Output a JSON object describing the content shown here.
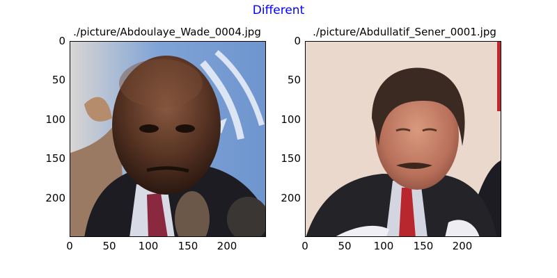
{
  "figure": {
    "title": "Different",
    "title_color": "#0000ff"
  },
  "panels": [
    {
      "title": "./picture/Abdoulaye_Wade_0004.jpg",
      "image_subject": "photo of man in dark suit with red tie, blue UN-style backdrop",
      "xticks": [
        "0",
        "50",
        "100",
        "150",
        "200"
      ],
      "yticks": [
        "0",
        "50",
        "100",
        "150",
        "200"
      ]
    },
    {
      "title": "./picture/Abdullatif_Sener_0001.jpg",
      "image_subject": "photo of man with mustache in dark suit and red tie, beige background",
      "xticks": [
        "0",
        "50",
        "100",
        "150",
        "200"
      ],
      "yticks": [
        "0",
        "50",
        "100",
        "150",
        "200"
      ]
    }
  ]
}
